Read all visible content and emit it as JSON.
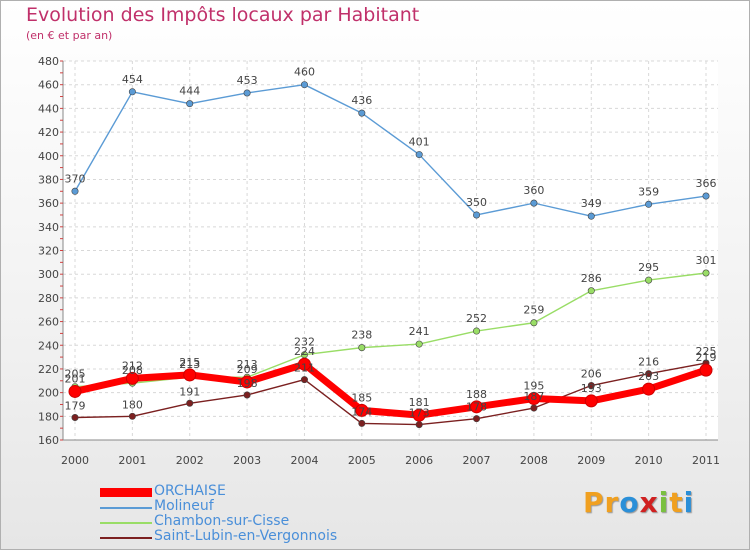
{
  "title": "Evolution des Impôts locaux par Habitant",
  "subtitle": "(en € et par an)",
  "logo": {
    "letters": [
      "P",
      "r",
      "o",
      "x",
      "i",
      "t",
      "i"
    ],
    "colors": [
      "#f0a020",
      "#f0a020",
      "#2a8fd8",
      "#d02020",
      "#7ac040",
      "#f0a020",
      "#2a8fd8"
    ]
  },
  "chart_data": {
    "type": "line",
    "title": "Evolution des Impôts locaux par Habitant",
    "subtitle": "(en € et par an)",
    "x": [
      "2000",
      "2001",
      "2002",
      "2003",
      "2004",
      "2005",
      "2006",
      "2007",
      "2008",
      "2009",
      "2010",
      "2011"
    ],
    "ylim": [
      160,
      480
    ],
    "yticks": [
      160,
      180,
      200,
      220,
      240,
      260,
      280,
      300,
      320,
      340,
      360,
      380,
      400,
      420,
      440,
      460,
      480
    ],
    "grid": true,
    "legend_position": "bottom-left",
    "series": [
      {
        "name": "ORCHAISE",
        "color": "#ff0000",
        "values": [
          201,
          212,
          215,
          209,
          224,
          185,
          181,
          188,
          195,
          193,
          203,
          219
        ],
        "labels": [
          "201",
          "212",
          "215",
          "209",
          "224",
          "185",
          "181",
          "188",
          "195",
          "193",
          "203",
          "219"
        ]
      },
      {
        "name": "Molineuf",
        "color": "#5b9bd5",
        "values": [
          370,
          454,
          444,
          453,
          460,
          436,
          401,
          350,
          360,
          349,
          359,
          366
        ],
        "labels": [
          "370",
          "454",
          "444",
          "453",
          "460",
          "436",
          "401",
          "350",
          "360",
          "349",
          "359",
          "366"
        ]
      },
      {
        "name": "Chambon-sur-Cisse",
        "color": "#99dd66",
        "values": [
          205,
          208,
          213,
          213,
          232,
          238,
          241,
          252,
          259,
          286,
          295,
          301
        ],
        "labels": [
          "205",
          "208",
          "213",
          "213",
          "232",
          "238",
          "241",
          "252",
          "259",
          "286",
          "295",
          "301"
        ]
      },
      {
        "name": "Saint-Lubin-en-Vergonnois",
        "color": "#7b2020",
        "values": [
          179,
          180,
          191,
          198,
          211,
          174,
          173,
          178,
          187,
          206,
          216,
          225
        ],
        "labels": [
          "179",
          "180",
          "191",
          "198",
          "211",
          "174",
          "173",
          "178",
          "187",
          "206",
          "216",
          "225"
        ]
      }
    ]
  }
}
